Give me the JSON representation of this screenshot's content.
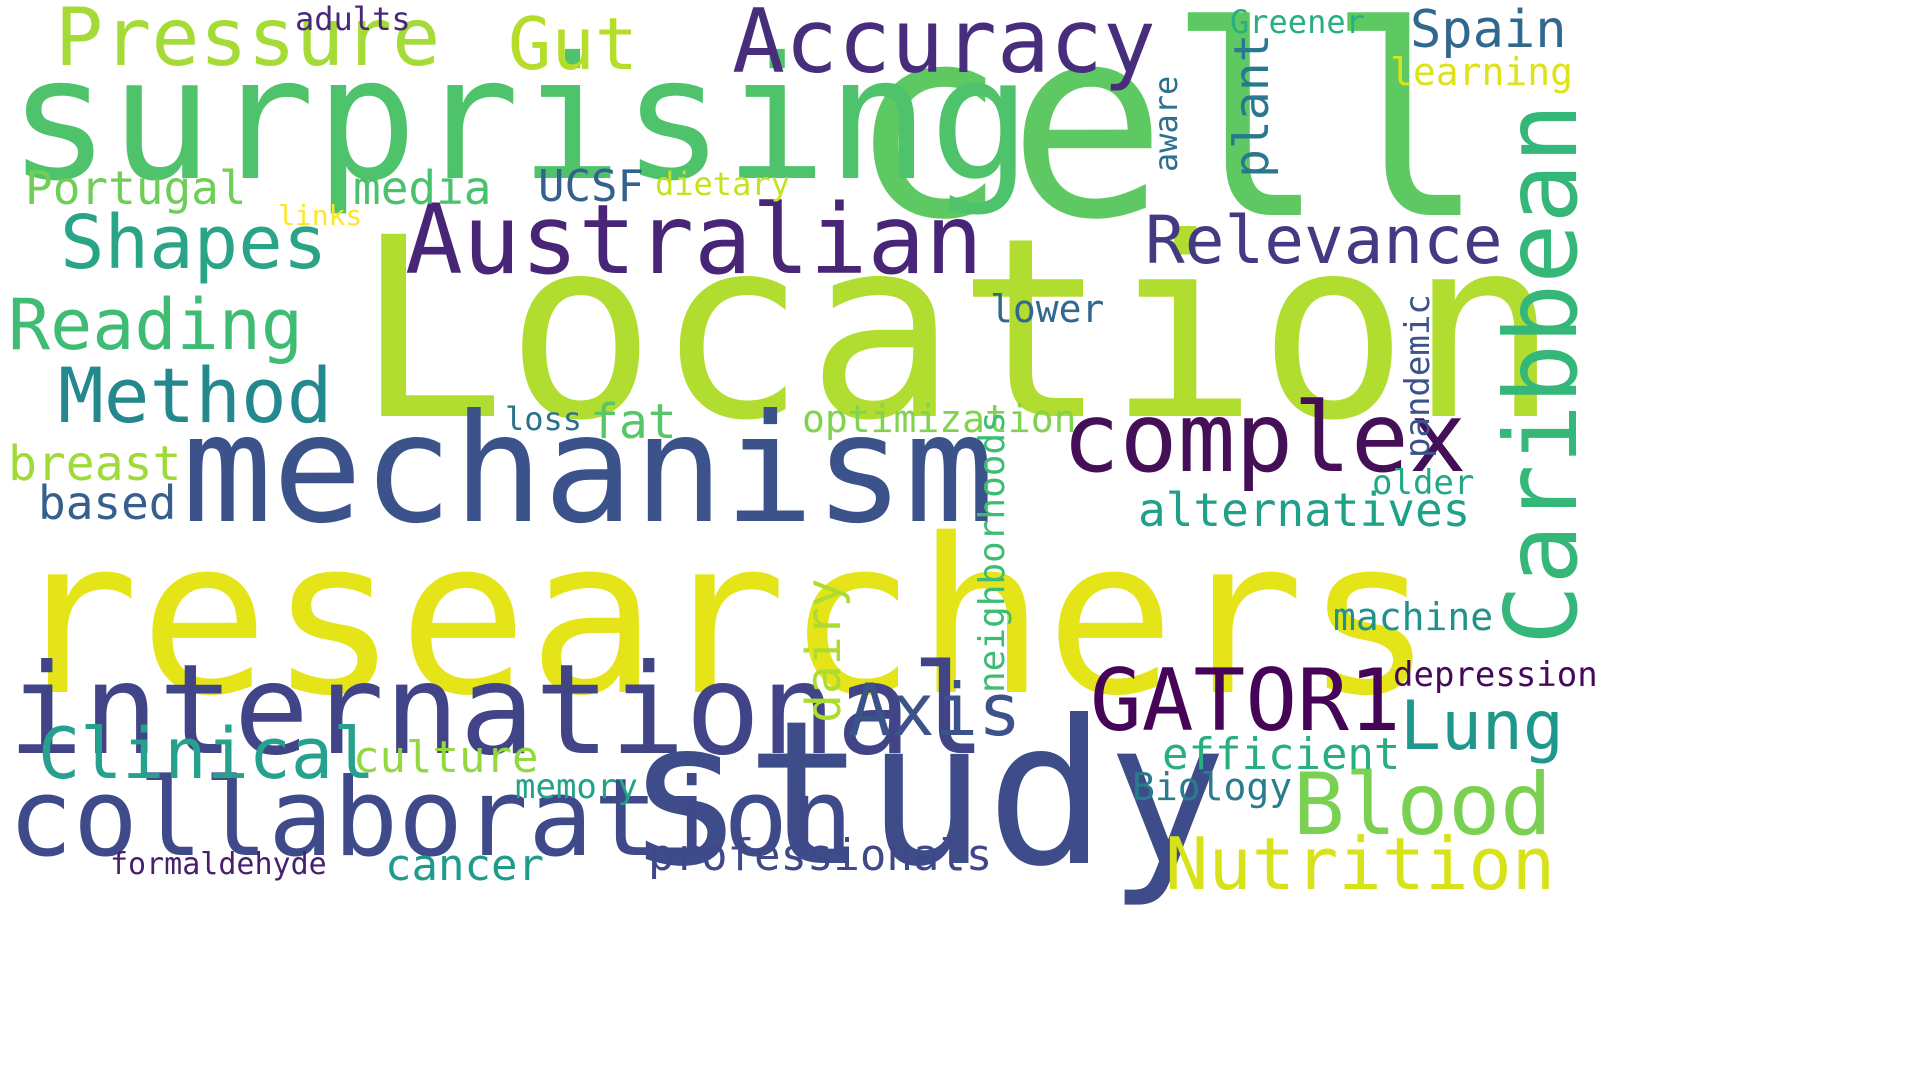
{
  "words": [
    {
      "id": "researchers",
      "text": "researchers",
      "color": "#e4e419"
    },
    {
      "id": "location",
      "text": "Location",
      "color": "#b0dd2f"
    },
    {
      "id": "cell",
      "text": "cell",
      "color": "#5ec962"
    },
    {
      "id": "study",
      "text": "study",
      "color": "#3e4c8a"
    },
    {
      "id": "mechanism",
      "text": "mechanism",
      "color": "#3b528b"
    },
    {
      "id": "surprising",
      "text": "surprising",
      "color": "#4ec36b"
    },
    {
      "id": "international",
      "text": "international",
      "color": "#414487"
    },
    {
      "id": "collaboration",
      "text": "collaboration",
      "color": "#3e4a89"
    },
    {
      "id": "accuracy",
      "text": "Accuracy",
      "color": "#472d7b"
    },
    {
      "id": "australian",
      "text": "Australian",
      "color": "#482576"
    },
    {
      "id": "complex",
      "text": "complex",
      "color": "#440f56"
    },
    {
      "id": "caribbean",
      "text": "Caribbean",
      "color": "#35b779"
    },
    {
      "id": "pressure",
      "text": "Pressure",
      "color": "#a5db36"
    },
    {
      "id": "gut",
      "text": "Gut",
      "color": "#b5de2b"
    },
    {
      "id": "gator1",
      "text": "GATOR1",
      "color": "#450457"
    },
    {
      "id": "blood",
      "text": "Blood",
      "color": "#7ad151"
    },
    {
      "id": "nutrition",
      "text": "Nutrition",
      "color": "#d8e219"
    },
    {
      "id": "shapes",
      "text": "Shapes",
      "color": "#29a487"
    },
    {
      "id": "method",
      "text": "Method",
      "color": "#23898e"
    },
    {
      "id": "relevance",
      "text": "Relevance",
      "color": "#443a83"
    },
    {
      "id": "reading",
      "text": "Reading",
      "color": "#3fbc73"
    },
    {
      "id": "clinical",
      "text": "Clinical",
      "color": "#25a18e"
    },
    {
      "id": "axis",
      "text": "Axis",
      "color": "#3b528b"
    },
    {
      "id": "lung",
      "text": "Lung",
      "color": "#1f988b"
    },
    {
      "id": "portugal",
      "text": "Portugal",
      "color": "#6ece58"
    },
    {
      "id": "media",
      "text": "media",
      "color": "#4ac16d"
    },
    {
      "id": "ucsf",
      "text": "UCSF",
      "color": "#33638d"
    },
    {
      "id": "dietary",
      "text": "dietary",
      "color": "#c8e020"
    },
    {
      "id": "links",
      "text": "links",
      "color": "#fde725"
    },
    {
      "id": "adults",
      "text": "adults",
      "color": "#482878"
    },
    {
      "id": "greener",
      "text": "Greener",
      "color": "#29af7f"
    },
    {
      "id": "spain",
      "text": "Spain",
      "color": "#31688e"
    },
    {
      "id": "learning",
      "text": "learning",
      "color": "#dde318"
    },
    {
      "id": "aware",
      "text": "aware",
      "color": "#2c728e"
    },
    {
      "id": "plant",
      "text": "plant",
      "color": "#2a788e"
    },
    {
      "id": "pandemic",
      "text": "pandemic",
      "color": "#3b528b"
    },
    {
      "id": "lower",
      "text": "lower",
      "color": "#31688e"
    },
    {
      "id": "breast",
      "text": "breast",
      "color": "#a0da39"
    },
    {
      "id": "based",
      "text": "based",
      "color": "#355f8d"
    },
    {
      "id": "loss",
      "text": "loss",
      "color": "#2d708e"
    },
    {
      "id": "fat",
      "text": "fat",
      "color": "#56c667"
    },
    {
      "id": "optimization",
      "text": "optimization",
      "color": "#7fd34e"
    },
    {
      "id": "neighborhoods",
      "text": "neighborhoods",
      "color": "#3dbc74"
    },
    {
      "id": "older",
      "text": "older",
      "color": "#22a884"
    },
    {
      "id": "alternatives",
      "text": "alternatives",
      "color": "#1fa088"
    },
    {
      "id": "dairy",
      "text": "dairy",
      "color": "#addc30"
    },
    {
      "id": "machine",
      "text": "machine",
      "color": "#21918c"
    },
    {
      "id": "depression",
      "text": "depression",
      "color": "#46085c"
    },
    {
      "id": "efficient",
      "text": "efficient",
      "color": "#28ae80"
    },
    {
      "id": "biology",
      "text": "Biology",
      "color": "#287c8e"
    },
    {
      "id": "culture",
      "text": "culture",
      "color": "#93d741"
    },
    {
      "id": "memory",
      "text": "memory",
      "color": "#20a386"
    },
    {
      "id": "cancer",
      "text": "cancer",
      "color": "#1e9b8a"
    },
    {
      "id": "professionals",
      "text": "professionals",
      "color": "#3f4889"
    },
    {
      "id": "formaldehyde",
      "text": "formaldehyde",
      "color": "#481f70"
    }
  ]
}
